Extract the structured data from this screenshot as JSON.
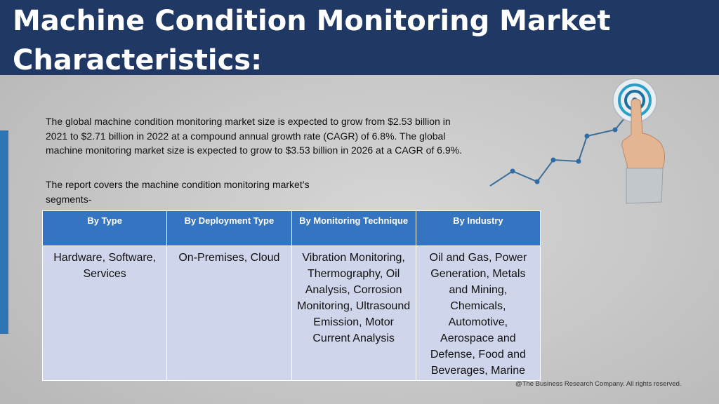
{
  "slide": {
    "title_line1": "Machine Condition Monitoring Market",
    "title_line2": "Characteristics:",
    "intro": "The global machine condition monitoring market size is expected to grow from $2.53 billion in 2021 to $2.71 billion in 2022 at a compound annual growth rate (CAGR) of 6.8%. The global machine monitoring market size is expected to grow to $3.53 billion in 2026 at a CAGR of 6.9%.",
    "covers": "The report covers the machine condition monitoring market’s segments-",
    "footer": "@The Business Research Company. All rights reserved.",
    "accent_colors": {
      "header": "#1f3864",
      "table_header": "#3474c0",
      "table_body": "#cfd5ea",
      "side_bar": "#2e75b6"
    },
    "graphic_icon": "hand-touching-target-growth-chart"
  },
  "table": {
    "headers": [
      "By Type",
      "By Deployment Type",
      "By Monitoring Technique",
      "By Industry"
    ],
    "cells": [
      "Hardware, Software, Services",
      "On-Premises, Cloud",
      "Vibration Monitoring, Thermography, Oil Analysis, Corrosion Monitoring, Ultrasound Emission, Motor Current Analysis",
      "Oil and Gas, Power Generation, Metals and Mining, Chemicals, Automotive, Aerospace and Defense, Food and Beverages, Marine"
    ]
  }
}
